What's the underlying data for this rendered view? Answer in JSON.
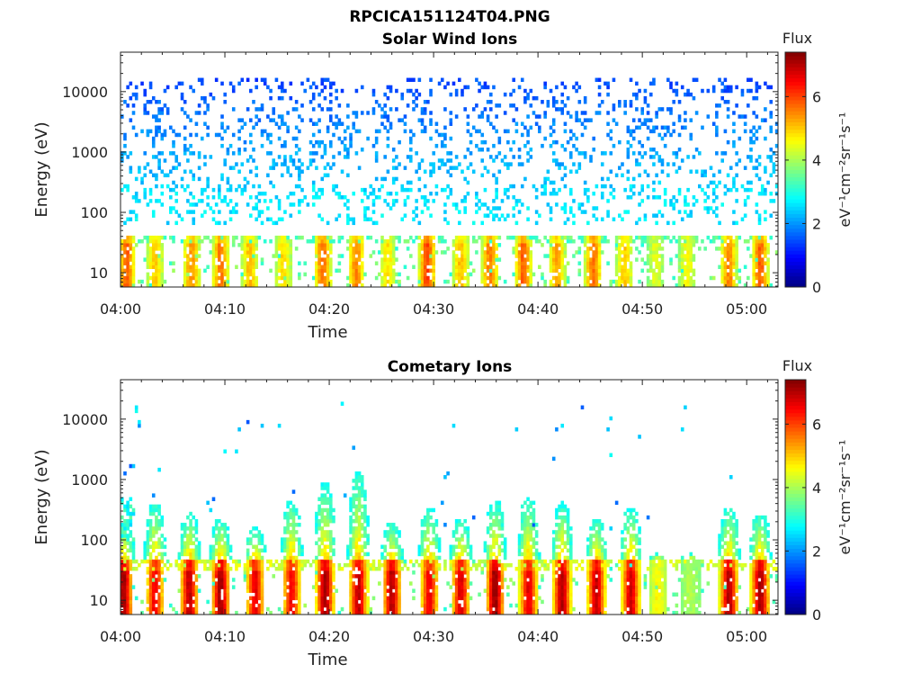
{
  "figure": {
    "filename": "RPCICA151124T04.PNG"
  },
  "colormap": "jet",
  "chart_data": [
    {
      "type": "heatmap",
      "title": "Solar Wind Ions",
      "xlabel": "Time",
      "ylabel": "Energy (eV)",
      "yscale": "log",
      "ylim": [
        5.8,
        45000
      ],
      "x_start": "04:00",
      "x_end": "05:02",
      "xlim_minutes": [
        0,
        63
      ],
      "xticks": [
        "04:00",
        "04:10",
        "04:20",
        "04:30",
        "04:40",
        "04:50",
        "05:00"
      ],
      "yticks": [
        "10",
        "100",
        "1000",
        "10000"
      ],
      "colorbar": {
        "title": "Flux",
        "label": "eV⁻¹cm⁻²sr⁻¹s⁻¹",
        "range": [
          0,
          7.4
        ],
        "ticks": [
          "0",
          "2",
          "4",
          "6"
        ]
      },
      "features": {
        "background_flux": 1.5,
        "low_energy_band_flux": 4.2,
        "burst_times_min": [
          0.6,
          3.3,
          6.8,
          9.6,
          12.4,
          15.6,
          19.4,
          22.6,
          25.6,
          29.4,
          32.6,
          35.4,
          38.6,
          41.8,
          45.3,
          48.3,
          51.3,
          54.3,
          58.3,
          61.3
        ],
        "burst_peak_flux": [
          5.6,
          4.8,
          5.2,
          5.4,
          4.9,
          4.7,
          5.5,
          5.3,
          4.6,
          5.8,
          4.9,
          5.4,
          5.6,
          5.1,
          5.5,
          4.8,
          4.2,
          4.4,
          5.3,
          5.6
        ]
      }
    },
    {
      "type": "heatmap",
      "title": "Cometary Ions",
      "xlabel": "Time",
      "ylabel": "Energy (eV)",
      "yscale": "log",
      "ylim": [
        5.8,
        45000
      ],
      "x_start": "04:00",
      "x_end": "05:02",
      "xlim_minutes": [
        0,
        63
      ],
      "xticks": [
        "04:00",
        "04:10",
        "04:20",
        "04:30",
        "04:40",
        "04:50",
        "05:00"
      ],
      "yticks": [
        "10",
        "100",
        "1000",
        "10000"
      ],
      "colorbar": {
        "title": "Flux",
        "label": "eV⁻¹cm⁻²sr⁻¹s⁻¹",
        "range": [
          0,
          7.4
        ],
        "ticks": [
          "0",
          "2",
          "4",
          "6"
        ]
      },
      "features": {
        "burst_times_min": [
          0.3,
          3.3,
          6.6,
          9.6,
          12.9,
          16.4,
          19.6,
          22.8,
          26.0,
          29.6,
          32.6,
          35.9,
          39.1,
          42.3,
          45.6,
          48.9,
          51.5,
          54.6,
          58.3,
          61.3
        ],
        "burst_peak_flux": [
          7.0,
          6.4,
          6.8,
          7.0,
          6.5,
          6.4,
          7.0,
          6.8,
          6.9,
          6.4,
          6.6,
          7.1,
          6.5,
          6.9,
          6.8,
          6.7,
          4.5,
          3.9,
          6.9,
          7.0
        ],
        "burst_tail_top_eV": [
          300,
          600,
          400,
          300,
          200,
          700,
          1500,
          2500,
          250,
          500,
          300,
          700,
          800,
          600,
          300,
          500,
          60,
          60,
          500,
          400
        ]
      }
    }
  ]
}
